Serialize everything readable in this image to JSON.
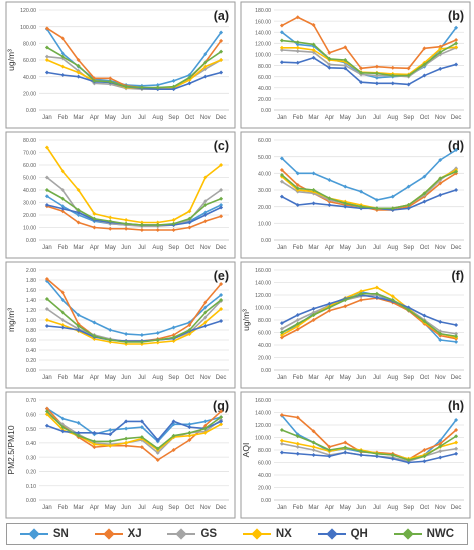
{
  "chart_data": [
    {
      "type": "line",
      "panel_label": "(a)",
      "ylabel": "ug/m³",
      "ylim": [
        0,
        120
      ],
      "yticks": [
        "0.00",
        "20.00",
        "40.00",
        "60.00",
        "80.00",
        "100.00",
        "120.00"
      ],
      "categories": [
        "Jan",
        "Feb",
        "Mar",
        "Apr",
        "May",
        "Jun",
        "Jul",
        "Aug",
        "Sep",
        "Oct",
        "Nov",
        "Dec"
      ],
      "series": [
        {
          "name": "SN",
          "values": [
            97,
            68,
            52,
            37,
            35,
            30,
            29,
            30,
            35,
            42,
            67,
            93
          ]
        },
        {
          "name": "XJ",
          "values": [
            98,
            86,
            60,
            38,
            38,
            29,
            27,
            26,
            27,
            38,
            57,
            83
          ]
        },
        {
          "name": "GS",
          "values": [
            64,
            62,
            47,
            32,
            31,
            26,
            25,
            25,
            26,
            37,
            49,
            60
          ]
        },
        {
          "name": "NX",
          "values": [
            60,
            52,
            45,
            35,
            33,
            27,
            26,
            27,
            27,
            36,
            52,
            60
          ]
        },
        {
          "name": "QH",
          "values": [
            45,
            42,
            40,
            34,
            33,
            28,
            26,
            25,
            25,
            32,
            40,
            45
          ]
        },
        {
          "name": "NWC",
          "values": [
            75,
            64,
            53,
            35,
            34,
            28,
            27,
            27,
            28,
            39,
            57,
            70
          ]
        }
      ]
    },
    {
      "type": "line",
      "panel_label": "(b)",
      "ylabel": "",
      "ylim": [
        0,
        180
      ],
      "yticks": [
        "0.00",
        "20.00",
        "40.00",
        "60.00",
        "80.00",
        "100.00",
        "120.00",
        "140.00",
        "160.00",
        "180.00"
      ],
      "categories": [
        "Jan",
        "Feb",
        "Mar",
        "Apr",
        "May",
        "Jun",
        "Jul",
        "Aug",
        "Sep",
        "Oct",
        "Nov",
        "Dec"
      ],
      "series": [
        {
          "name": "SN",
          "values": [
            140,
            118,
            115,
            92,
            85,
            65,
            58,
            60,
            62,
            78,
            110,
            148
          ]
        },
        {
          "name": "XJ",
          "values": [
            152,
            167,
            153,
            103,
            113,
            75,
            78,
            76,
            75,
            111,
            114,
            126
          ]
        },
        {
          "name": "GS",
          "values": [
            108,
            106,
            104,
            82,
            80,
            64,
            62,
            62,
            60,
            80,
            100,
            112
          ]
        },
        {
          "name": "NX",
          "values": [
            112,
            112,
            108,
            90,
            87,
            68,
            67,
            65,
            64,
            85,
            110,
            113
          ]
        },
        {
          "name": "QH",
          "values": [
            86,
            85,
            94,
            76,
            75,
            50,
            48,
            48,
            46,
            62,
            74,
            82
          ]
        },
        {
          "name": "NWC",
          "values": [
            125,
            122,
            118,
            92,
            90,
            67,
            66,
            62,
            62,
            82,
            104,
            120
          ]
        }
      ]
    },
    {
      "type": "line",
      "panel_label": "(c)",
      "ylabel": "",
      "ylim": [
        0,
        80
      ],
      "yticks": [
        "0.00",
        "10.00",
        "20.00",
        "30.00",
        "40.00",
        "50.00",
        "60.00",
        "70.00",
        "80.00"
      ],
      "categories": [
        "Jan",
        "Feb",
        "Mar",
        "Apr",
        "May",
        "Jun",
        "Jul",
        "Aug",
        "Sep",
        "Oct",
        "Nov",
        "Dec"
      ],
      "series": [
        {
          "name": "SN",
          "values": [
            35,
            27,
            20,
            15,
            13,
            12,
            12,
            12,
            12,
            15,
            22,
            28
          ]
        },
        {
          "name": "XJ",
          "values": [
            27,
            23,
            14,
            10,
            9,
            9,
            8,
            8,
            8,
            10,
            15,
            19
          ]
        },
        {
          "name": "GS",
          "values": [
            50,
            40,
            22,
            16,
            13,
            12,
            11,
            11,
            12,
            16,
            31,
            40
          ]
        },
        {
          "name": "NX",
          "values": [
            74,
            55,
            40,
            21,
            18,
            16,
            14,
            14,
            16,
            23,
            50,
            60
          ]
        },
        {
          "name": "QH",
          "values": [
            28,
            25,
            22,
            16,
            14,
            13,
            12,
            12,
            12,
            14,
            20,
            26
          ]
        },
        {
          "name": "NWC",
          "values": [
            40,
            33,
            24,
            17,
            15,
            13,
            12,
            12,
            13,
            17,
            28,
            33
          ]
        }
      ]
    },
    {
      "type": "line",
      "panel_label": "(d)",
      "ylabel": "",
      "ylim": [
        0,
        60
      ],
      "yticks": [
        "0.00",
        "10.00",
        "20.00",
        "30.00",
        "40.00",
        "50.00",
        "60.00"
      ],
      "categories": [
        "Jan",
        "Feb",
        "Mar",
        "Apr",
        "May",
        "Jun",
        "Jul",
        "Aug",
        "Sep",
        "Oct",
        "Nov",
        "Dec"
      ],
      "series": [
        {
          "name": "SN",
          "values": [
            49,
            40,
            40,
            36,
            32,
            29,
            24,
            26,
            32,
            38,
            48,
            54
          ]
        },
        {
          "name": "XJ",
          "values": [
            42,
            33,
            28,
            23,
            21,
            20,
            18,
            18,
            20,
            26,
            34,
            40
          ]
        },
        {
          "name": "GS",
          "values": [
            35,
            29,
            28,
            24,
            22,
            20,
            19,
            19,
            21,
            27,
            36,
            43
          ]
        },
        {
          "name": "NX",
          "values": [
            38,
            30,
            29,
            25,
            23,
            21,
            19,
            19,
            21,
            28,
            37,
            42
          ]
        },
        {
          "name": "QH",
          "values": [
            26,
            21,
            22,
            21,
            20,
            19,
            19,
            18,
            19,
            23,
            27,
            30
          ]
        },
        {
          "name": "NWC",
          "values": [
            39,
            31,
            30,
            25,
            22,
            20,
            19,
            19,
            21,
            28,
            37,
            41
          ]
        }
      ]
    },
    {
      "type": "line",
      "panel_label": "(e)",
      "ylabel": "mg/m³",
      "ylim": [
        0,
        2
      ],
      "yticks": [
        "0.00",
        "0.20",
        "0.40",
        "0.60",
        "0.80",
        "1.00",
        "1.20",
        "1.40",
        "1.60",
        "1.80",
        "2.00"
      ],
      "categories": [
        "Jan",
        "Feb",
        "Mar",
        "Apr",
        "May",
        "Jun",
        "Jul",
        "Aug",
        "Sep",
        "Oct",
        "Nov",
        "Dec"
      ],
      "series": [
        {
          "name": "SN",
          "values": [
            1.78,
            1.4,
            1.1,
            0.95,
            0.8,
            0.72,
            0.7,
            0.74,
            0.85,
            0.95,
            1.25,
            1.5
          ]
        },
        {
          "name": "XJ",
          "values": [
            1.82,
            1.55,
            0.92,
            0.68,
            0.6,
            0.58,
            0.58,
            0.62,
            0.7,
            0.9,
            1.35,
            1.72
          ]
        },
        {
          "name": "GS",
          "values": [
            1.22,
            1.0,
            0.82,
            0.7,
            0.62,
            0.57,
            0.58,
            0.6,
            0.63,
            0.75,
            1.05,
            1.38
          ]
        },
        {
          "name": "NX",
          "values": [
            1.0,
            0.9,
            0.78,
            0.62,
            0.56,
            0.52,
            0.52,
            0.55,
            0.58,
            0.72,
            0.95,
            1.22
          ]
        },
        {
          "name": "QH",
          "values": [
            0.88,
            0.85,
            0.8,
            0.66,
            0.6,
            0.58,
            0.58,
            0.6,
            0.63,
            0.78,
            0.88,
            0.98
          ]
        },
        {
          "name": "NWC",
          "values": [
            1.42,
            1.15,
            0.88,
            0.68,
            0.6,
            0.56,
            0.56,
            0.6,
            0.65,
            0.8,
            1.15,
            1.4
          ]
        }
      ]
    },
    {
      "type": "line",
      "panel_label": "(f)",
      "ylabel": "ug/m³",
      "ylim": [
        0,
        160
      ],
      "yticks": [
        "0.00",
        "20.00",
        "40.00",
        "60.00",
        "80.00",
        "100.00",
        "120.00",
        "140.00",
        "160.00"
      ],
      "categories": [
        "Jan",
        "Feb",
        "Mar",
        "Apr",
        "May",
        "Jun",
        "Jul",
        "Aug",
        "Sep",
        "Oct",
        "Nov",
        "Dec"
      ],
      "series": [
        {
          "name": "SN",
          "values": [
            60,
            72,
            90,
            104,
            115,
            125,
            120,
            110,
            95,
            75,
            48,
            45
          ]
        },
        {
          "name": "XJ",
          "values": [
            52,
            65,
            80,
            95,
            102,
            112,
            115,
            108,
            95,
            74,
            55,
            50
          ]
        },
        {
          "name": "GS",
          "values": [
            66,
            80,
            92,
            103,
            112,
            118,
            120,
            112,
            98,
            80,
            62,
            58
          ]
        },
        {
          "name": "NX",
          "values": [
            56,
            70,
            88,
            102,
            115,
            126,
            132,
            118,
            98,
            76,
            58,
            52
          ]
        },
        {
          "name": "QH",
          "values": [
            75,
            88,
            98,
            106,
            114,
            120,
            116,
            110,
            100,
            87,
            77,
            72
          ]
        },
        {
          "name": "NWC",
          "values": [
            60,
            74,
            88,
            100,
            112,
            122,
            122,
            112,
            96,
            78,
            58,
            54
          ]
        }
      ]
    },
    {
      "type": "line",
      "panel_label": "(g)",
      "ylabel": "PM2.5/PM10",
      "ylim": [
        0,
        0.7
      ],
      "yticks": [
        "0.00",
        "0.10",
        "0.20",
        "0.30",
        "0.40",
        "0.50",
        "0.60",
        "0.70"
      ],
      "categories": [
        "Jan",
        "Feb",
        "Mar",
        "Apr",
        "May",
        "Jun",
        "Jul",
        "Aug",
        "Sep",
        "Oct",
        "Nov",
        "Dec"
      ],
      "series": [
        {
          "name": "SN",
          "values": [
            0.64,
            0.57,
            0.54,
            0.46,
            0.49,
            0.5,
            0.51,
            0.41,
            0.53,
            0.53,
            0.55,
            0.58
          ]
        },
        {
          "name": "XJ",
          "values": [
            0.64,
            0.52,
            0.44,
            0.37,
            0.38,
            0.38,
            0.37,
            0.28,
            0.35,
            0.42,
            0.52,
            0.62
          ]
        },
        {
          "name": "GS",
          "values": [
            0.6,
            0.53,
            0.46,
            0.4,
            0.39,
            0.4,
            0.42,
            0.33,
            0.44,
            0.47,
            0.48,
            0.56
          ]
        },
        {
          "name": "NX",
          "values": [
            0.6,
            0.49,
            0.45,
            0.39,
            0.38,
            0.4,
            0.43,
            0.35,
            0.44,
            0.45,
            0.47,
            0.53
          ]
        },
        {
          "name": "QH",
          "values": [
            0.52,
            0.48,
            0.47,
            0.47,
            0.46,
            0.55,
            0.55,
            0.42,
            0.55,
            0.51,
            0.5,
            0.55
          ]
        },
        {
          "name": "NWC",
          "values": [
            0.62,
            0.51,
            0.45,
            0.41,
            0.41,
            0.43,
            0.44,
            0.36,
            0.45,
            0.47,
            0.5,
            0.58
          ]
        }
      ]
    },
    {
      "type": "line",
      "panel_label": "(h)",
      "ylabel": "AQI",
      "ylim": [
        0,
        160
      ],
      "yticks": [
        "0.00",
        "20.00",
        "40.00",
        "60.00",
        "80.00",
        "100.00",
        "120.00",
        "140.00",
        "160.00"
      ],
      "categories": [
        "Jan",
        "Feb",
        "Mar",
        "Apr",
        "May",
        "Jun",
        "Jul",
        "Aug",
        "Sep",
        "Oct",
        "Nov",
        "Dec"
      ],
      "series": [
        {
          "name": "SN",
          "values": [
            135,
            105,
            92,
            78,
            82,
            77,
            75,
            72,
            65,
            72,
            95,
            128
          ]
        },
        {
          "name": "XJ",
          "values": [
            136,
            132,
            110,
            85,
            92,
            77,
            76,
            74,
            65,
            80,
            90,
            112
          ]
        },
        {
          "name": "GS",
          "values": [
            90,
            85,
            80,
            72,
            76,
            72,
            70,
            68,
            62,
            70,
            78,
            82
          ]
        },
        {
          "name": "NX",
          "values": [
            95,
            90,
            85,
            78,
            83,
            80,
            75,
            72,
            66,
            72,
            85,
            92
          ]
        },
        {
          "name": "QH",
          "values": [
            76,
            74,
            72,
            70,
            76,
            72,
            70,
            66,
            60,
            62,
            68,
            74
          ]
        },
        {
          "name": "NWC",
          "values": [
            112,
            102,
            92,
            80,
            84,
            78,
            74,
            72,
            64,
            70,
            86,
            102
          ]
        }
      ]
    }
  ],
  "legend": [
    {
      "name": "SN",
      "color": "#4a9bd6"
    },
    {
      "name": "XJ",
      "color": "#ed7d31"
    },
    {
      "name": "GS",
      "color": "#a5a5a5"
    },
    {
      "name": "NX",
      "color": "#ffc000"
    },
    {
      "name": "QH",
      "color": "#4472c4"
    },
    {
      "name": "NWC",
      "color": "#70ad47"
    }
  ]
}
